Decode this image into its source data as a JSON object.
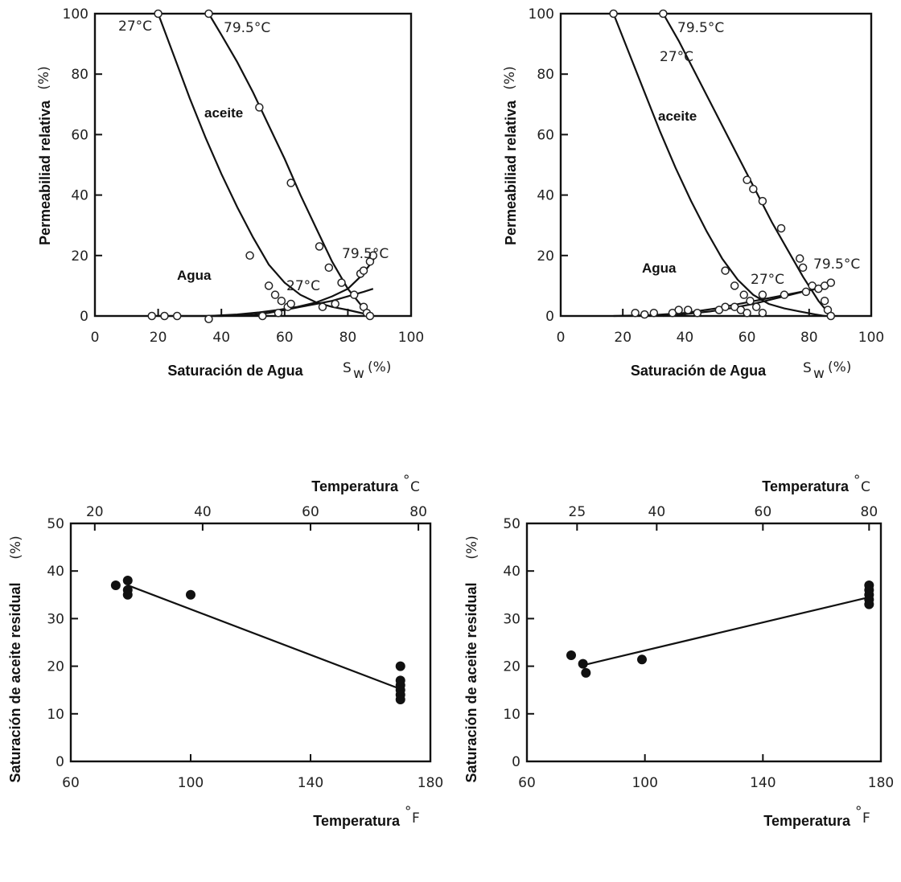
{
  "chart_data": [
    {
      "type": "line",
      "xlabel": "Saturación de Agua",
      "xunit_symbol": "S",
      "xunit_sub": "w",
      "xunit_pct": "(%)",
      "ylabel": "Permeabiliad relativa",
      "yunit": "(%)",
      "xlim": [
        0,
        100
      ],
      "ylim": [
        0,
        100
      ],
      "xticks": [
        "0",
        "20",
        "40",
        "60",
        "80",
        "100"
      ],
      "yticks": [
        "0",
        "20",
        "40",
        "60",
        "80",
        "100"
      ],
      "annotations": [
        "27°C",
        "79.5°C",
        "aceite",
        "Agua",
        "27°C",
        "79.5°C"
      ],
      "series": [
        {
          "name": "aceite 27°C",
          "x": [
            20,
            25,
            30,
            35,
            40,
            45,
            50,
            55,
            60,
            65,
            70,
            75,
            80,
            85,
            88
          ],
          "y": [
            100,
            86,
            72,
            59,
            47,
            36,
            26,
            17,
            11,
            7,
            4.5,
            3,
            2,
            0.8,
            0
          ]
        },
        {
          "name": "aceite 79.5°C",
          "x": [
            36,
            40,
            45,
            50,
            55,
            60,
            65,
            70,
            75,
            80,
            85,
            88
          ],
          "y": [
            100,
            93,
            84,
            74,
            63,
            52,
            40,
            29,
            18,
            9,
            2.5,
            0
          ]
        },
        {
          "name": "agua 27°C",
          "x": [
            20,
            30,
            40,
            50,
            55,
            60,
            65,
            70,
            75,
            80,
            85,
            88
          ],
          "y": [
            0,
            0,
            0,
            0.4,
            1,
            2,
            3,
            4,
            5,
            6.5,
            8,
            9
          ]
        },
        {
          "name": "agua 79.5°C",
          "x": [
            36,
            45,
            52,
            58,
            64,
            70,
            75,
            80,
            84,
            87,
            89
          ],
          "y": [
            0,
            0.5,
            1.2,
            2,
            3,
            4.5,
            6.5,
            9,
            13,
            17,
            20
          ]
        }
      ],
      "points_open": [
        {
          "x": 20,
          "y": 100
        },
        {
          "x": 36,
          "y": 100
        },
        {
          "x": 49,
          "y": 20
        },
        {
          "x": 55,
          "y": 10
        },
        {
          "x": 57,
          "y": 7
        },
        {
          "x": 59,
          "y": 5
        },
        {
          "x": 61,
          "y": 3
        },
        {
          "x": 62,
          "y": 4
        },
        {
          "x": 52,
          "y": 69
        },
        {
          "x": 62,
          "y": 44
        },
        {
          "x": 71,
          "y": 23
        },
        {
          "x": 74,
          "y": 16
        },
        {
          "x": 78,
          "y": 11
        },
        {
          "x": 82,
          "y": 7
        },
        {
          "x": 84,
          "y": 14
        },
        {
          "x": 85,
          "y": 15
        },
        {
          "x": 87,
          "y": 18
        },
        {
          "x": 88,
          "y": 20
        },
        {
          "x": 85,
          "y": 3
        },
        {
          "x": 86,
          "y": 1
        },
        {
          "x": 87,
          "y": 0
        },
        {
          "x": 18,
          "y": 0
        },
        {
          "x": 22,
          "y": 0
        },
        {
          "x": 26,
          "y": 0
        },
        {
          "x": 36,
          "y": -1
        },
        {
          "x": 53,
          "y": 0
        },
        {
          "x": 58,
          "y": 1
        },
        {
          "x": 72,
          "y": 3
        },
        {
          "x": 76,
          "y": 4
        }
      ]
    },
    {
      "type": "line",
      "xlabel": "Saturación de Agua",
      "xunit_symbol": "S",
      "xunit_sub": "w",
      "xunit_pct": "(%)",
      "ylabel": "Permeabiliad relativa",
      "yunit": "(%)",
      "xlim": [
        0,
        100
      ],
      "ylim": [
        0,
        100
      ],
      "xticks": [
        "0",
        "20",
        "40",
        "60",
        "80",
        "100"
      ],
      "yticks": [
        "0",
        "20",
        "40",
        "60",
        "80",
        "100"
      ],
      "annotations": [
        "79.5°C",
        "27°C",
        "aceite",
        "Agua",
        "27°C",
        "79.5°C"
      ],
      "series": [
        {
          "name": "aceite 27°C",
          "x": [
            17,
            22,
            27,
            32,
            37,
            42,
            47,
            52,
            57,
            62,
            67,
            72,
            77,
            82,
            85
          ],
          "y": [
            100,
            87,
            74,
            61,
            49,
            38,
            28,
            19,
            12,
            7,
            4,
            2.5,
            1.5,
            0.5,
            0
          ]
        },
        {
          "name": "aceite 79.5°C",
          "x": [
            33,
            38,
            43,
            48,
            53,
            58,
            63,
            68,
            73,
            78,
            83,
            87
          ],
          "y": [
            100,
            91,
            81,
            71,
            61,
            51,
            41,
            31,
            22,
            13,
            5,
            0
          ]
        },
        {
          "name": "agua 27°C",
          "x": [
            17,
            30,
            40,
            50,
            55,
            60,
            65,
            70,
            75,
            80,
            83
          ],
          "y": [
            0,
            0.3,
            1,
            2.5,
            3.5,
            4.5,
            5.5,
            6.5,
            7.5,
            8.5,
            9
          ]
        },
        {
          "name": "agua 79.5°C",
          "x": [
            33,
            40,
            48,
            55,
            62,
            68,
            74,
            80,
            84,
            87
          ],
          "y": [
            0,
            0.6,
            1.5,
            2.6,
            4,
            5.5,
            7,
            8.5,
            10,
            11
          ]
        }
      ],
      "points_open": [
        {
          "x": 17,
          "y": 100
        },
        {
          "x": 33,
          "y": 100
        },
        {
          "x": 60,
          "y": 45
        },
        {
          "x": 62,
          "y": 42
        },
        {
          "x": 65,
          "y": 38
        },
        {
          "x": 71,
          "y": 29
        },
        {
          "x": 77,
          "y": 19
        },
        {
          "x": 78,
          "y": 16
        },
        {
          "x": 81,
          "y": 10
        },
        {
          "x": 83,
          "y": 9
        },
        {
          "x": 85,
          "y": 5
        },
        {
          "x": 86,
          "y": 2
        },
        {
          "x": 87,
          "y": 0
        },
        {
          "x": 53,
          "y": 15
        },
        {
          "x": 56,
          "y": 10
        },
        {
          "x": 59,
          "y": 7
        },
        {
          "x": 61,
          "y": 5
        },
        {
          "x": 63,
          "y": 3
        },
        {
          "x": 65,
          "y": 7
        },
        {
          "x": 72,
          "y": 7
        },
        {
          "x": 79,
          "y": 8
        },
        {
          "x": 85,
          "y": 10
        },
        {
          "x": 87,
          "y": 11
        },
        {
          "x": 24,
          "y": 1
        },
        {
          "x": 27,
          "y": 0.5
        },
        {
          "x": 30,
          "y": 1
        },
        {
          "x": 36,
          "y": 1
        },
        {
          "x": 38,
          "y": 2
        },
        {
          "x": 41,
          "y": 2
        },
        {
          "x": 44,
          "y": 1
        },
        {
          "x": 51,
          "y": 2
        },
        {
          "x": 53,
          "y": 3
        },
        {
          "x": 56,
          "y": 3
        },
        {
          "x": 58,
          "y": 2
        },
        {
          "x": 60,
          "y": 1
        },
        {
          "x": 65,
          "y": 1
        }
      ]
    },
    {
      "type": "scatter",
      "xlabel": "Temperatura",
      "xunit": "°F",
      "x2label": "Temperatura",
      "x2unit": "°C",
      "ylabel": "Saturación de aceite residual",
      "yunit": "(%)",
      "xlim": [
        60,
        180
      ],
      "x2lim": [
        15.6,
        82.2
      ],
      "ylim": [
        0,
        50
      ],
      "xticks": [
        "60",
        "100",
        "140",
        "180"
      ],
      "x2ticks": [
        "20",
        "40",
        "60",
        "80"
      ],
      "yticks": [
        "0",
        "10",
        "20",
        "30",
        "40",
        "50"
      ],
      "points": [
        {
          "x": 75,
          "y": 37
        },
        {
          "x": 79,
          "y": 38
        },
        {
          "x": 79,
          "y": 36
        },
        {
          "x": 79,
          "y": 35
        },
        {
          "x": 100,
          "y": 35
        },
        {
          "x": 170,
          "y": 20
        },
        {
          "x": 170,
          "y": 17
        },
        {
          "x": 170,
          "y": 16
        },
        {
          "x": 170,
          "y": 15
        },
        {
          "x": 170,
          "y": 14
        },
        {
          "x": 170,
          "y": 13
        }
      ],
      "fit_line": {
        "x": [
          79,
          170
        ],
        "y": [
          37,
          15.2
        ]
      }
    },
    {
      "type": "scatter",
      "xlabel": "Temperatura",
      "xunit": "°F",
      "x2label": "Temperatura",
      "x2unit": "°C",
      "ylabel": "Saturación de aceite residual",
      "yunit": "(%)",
      "xlim": [
        60,
        180
      ],
      "x2lim": [
        15.6,
        82.2
      ],
      "ylim": [
        0,
        50
      ],
      "xticks": [
        "60",
        "100",
        "140",
        "180"
      ],
      "x2ticks": [
        "25",
        "40",
        "60",
        "80"
      ],
      "yticks": [
        "0",
        "10",
        "20",
        "30",
        "40",
        "50"
      ],
      "points": [
        {
          "x": 75,
          "y": 22.3
        },
        {
          "x": 79,
          "y": 20.5
        },
        {
          "x": 80,
          "y": 18.6
        },
        {
          "x": 99,
          "y": 21.4
        },
        {
          "x": 176,
          "y": 37
        },
        {
          "x": 176,
          "y": 36
        },
        {
          "x": 176,
          "y": 35
        },
        {
          "x": 176,
          "y": 34
        },
        {
          "x": 176,
          "y": 33
        }
      ],
      "fit_line": {
        "x": [
          79,
          176
        ],
        "y": [
          20.2,
          34.5
        ]
      }
    }
  ]
}
